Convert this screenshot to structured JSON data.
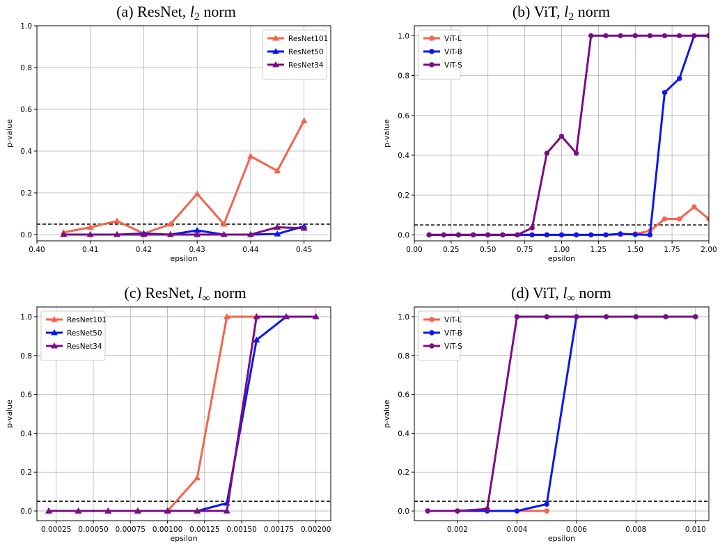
{
  "chart_data": [
    {
      "type": "line",
      "title": {
        "prefix": "(a) ResNet, ",
        "symbol": "l",
        "sub": "2",
        "suffix": " norm"
      },
      "xlabel": "epsilon",
      "ylabel": "p-value",
      "xlim": [
        0.4,
        0.455
      ],
      "ylim": [
        -0.03,
        1.0
      ],
      "xticks": [
        0.4,
        0.41,
        0.42,
        0.43,
        0.44,
        0.45
      ],
      "xtick_labels": [
        "0.40",
        "0.41",
        "0.42",
        "0.43",
        "0.44",
        "0.45"
      ],
      "yticks": [
        0.0,
        0.2,
        0.4,
        0.6,
        0.8,
        1.0
      ],
      "ytick_labels": [
        "0.0",
        "0.2",
        "0.4",
        "0.6",
        "0.8",
        "1.0"
      ],
      "grid": true,
      "legend_position": "top-right",
      "threshold": 0.05,
      "marker": "triangle",
      "x": [
        0.405,
        0.41,
        0.415,
        0.42,
        0.425,
        0.43,
        0.435,
        0.44,
        0.445,
        0.45
      ],
      "series": [
        {
          "name": "ResNet101",
          "color": "#f4634a",
          "values": [
            0.01,
            0.035,
            0.065,
            0.005,
            0.05,
            0.195,
            0.05,
            0.375,
            0.305,
            0.545
          ]
        },
        {
          "name": "ResNet50",
          "color": "#0b16f1",
          "values": [
            0.0,
            0.0,
            0.0,
            0.005,
            0.0,
            0.02,
            0.0,
            0.0,
            0.003,
            0.04
          ]
        },
        {
          "name": "ResNet34",
          "color": "#7a0c86",
          "values": [
            0.0,
            0.0,
            0.0,
            0.0,
            0.0,
            0.0,
            0.0,
            0.0,
            0.035,
            0.03
          ]
        }
      ]
    },
    {
      "type": "line",
      "title": {
        "prefix": "(b) ViT, ",
        "symbol": "l",
        "sub": "2",
        "suffix": " norm"
      },
      "xlabel": "epsilon",
      "ylabel": "p-value",
      "xlim": [
        0.0,
        2.0
      ],
      "ylim": [
        -0.03,
        1.05
      ],
      "xticks": [
        0.0,
        0.25,
        0.5,
        0.75,
        1.0,
        1.25,
        1.5,
        1.75,
        2.0
      ],
      "xtick_labels": [
        "0.00",
        "0.25",
        "0.50",
        "0.75",
        "1.00",
        "1.25",
        "1.50",
        "1.75",
        "2.00"
      ],
      "yticks": [
        0.0,
        0.2,
        0.4,
        0.6,
        0.8,
        1.0
      ],
      "ytick_labels": [
        "0.0",
        "0.2",
        "0.4",
        "0.6",
        "0.8",
        "1.0"
      ],
      "grid": true,
      "legend_position": "top-left",
      "threshold": 0.05,
      "marker": "circle",
      "x": [
        0.1,
        0.2,
        0.3,
        0.4,
        0.5,
        0.6,
        0.7,
        0.8,
        0.9,
        1.0,
        1.1,
        1.2,
        1.3,
        1.4,
        1.5,
        1.6,
        1.7,
        1.8,
        1.9,
        2.0
      ],
      "series": [
        {
          "name": "ViT-L",
          "color": "#f4634a",
          "values": [
            0.0,
            0.0,
            0.0,
            0.0,
            0.0,
            0.0,
            0.0,
            0.0,
            0.0,
            0.0,
            0.0,
            0.0,
            0.0,
            0.002,
            0.005,
            0.02,
            0.08,
            0.08,
            0.14,
            0.08
          ]
        },
        {
          "name": "ViT-B",
          "color": "#0b16f1",
          "values": [
            0.0,
            0.0,
            0.0,
            0.0,
            0.0,
            0.0,
            0.0,
            0.0,
            0.0,
            0.0,
            0.0,
            0.0,
            0.0,
            0.005,
            0.002,
            0.0,
            0.715,
            0.785,
            1.0,
            1.0
          ]
        },
        {
          "name": "ViT-S",
          "color": "#7a0c86",
          "values": [
            0.0,
            0.0,
            0.0,
            0.0,
            0.0,
            0.0,
            0.0,
            0.035,
            0.41,
            0.495,
            0.41,
            1.0,
            1.0,
            1.0,
            1.0,
            1.0,
            1.0,
            1.0,
            1.0,
            1.0
          ]
        }
      ]
    },
    {
      "type": "line",
      "title": {
        "prefix": "(c) ResNet, ",
        "symbol": "l",
        "sub": "∞",
        "suffix": " norm"
      },
      "xlabel": "epsilon",
      "ylabel": "p-value",
      "xlim": [
        0.00012,
        0.0021
      ],
      "ylim": [
        -0.05,
        1.05
      ],
      "xticks": [
        0.00025,
        0.0005,
        0.00075,
        0.001,
        0.00125,
        0.0015,
        0.00175,
        0.002
      ],
      "xtick_labels": [
        "0.00025",
        "0.00050",
        "0.00075",
        "0.00100",
        "0.00125",
        "0.00150",
        "0.00175",
        "0.00200"
      ],
      "yticks": [
        0.0,
        0.2,
        0.4,
        0.6,
        0.8,
        1.0
      ],
      "ytick_labels": [
        "0.0",
        "0.2",
        "0.4",
        "0.6",
        "0.8",
        "1.0"
      ],
      "grid": true,
      "legend_position": "top-left",
      "threshold": 0.05,
      "marker": "triangle",
      "x": [
        0.0002,
        0.0004,
        0.0006,
        0.0008,
        0.001,
        0.0012,
        0.0014,
        0.0016,
        0.0018,
        0.002
      ],
      "series": [
        {
          "name": "ResNet101",
          "color": "#f4634a",
          "values": [
            0.0,
            0.0,
            0.0,
            0.0,
            0.0,
            0.17,
            1.0,
            1.0,
            1.0,
            1.0
          ]
        },
        {
          "name": "ResNet50",
          "color": "#0b16f1",
          "values": [
            0.0,
            0.0,
            0.0,
            0.0,
            0.0,
            0.0,
            0.04,
            0.88,
            1.0,
            1.0
          ]
        },
        {
          "name": "ResNet34",
          "color": "#7a0c86",
          "values": [
            0.0,
            0.0,
            0.0,
            0.0,
            0.0,
            0.0,
            0.0,
            1.0,
            1.0,
            1.0
          ]
        }
      ]
    },
    {
      "type": "line",
      "title": {
        "prefix": "(d) ViT, ",
        "symbol": "l",
        "sub": "∞",
        "suffix": " norm"
      },
      "xlabel": "epsilon",
      "ylabel": "p-value",
      "xlim": [
        0.00055,
        0.01045
      ],
      "ylim": [
        -0.05,
        1.05
      ],
      "xticks": [
        0.002,
        0.004,
        0.006,
        0.008,
        0.01
      ],
      "xtick_labels": [
        "0.002",
        "0.004",
        "0.006",
        "0.008",
        "0.010"
      ],
      "yticks": [
        0.0,
        0.2,
        0.4,
        0.6,
        0.8,
        1.0
      ],
      "ytick_labels": [
        "0.0",
        "0.2",
        "0.4",
        "0.6",
        "0.8",
        "1.0"
      ],
      "grid": true,
      "legend_position": "top-left",
      "threshold": 0.05,
      "marker": "circle",
      "x": [
        0.001,
        0.002,
        0.003,
        0.004,
        0.005,
        0.006,
        0.007,
        0.008,
        0.009,
        0.01
      ],
      "series": [
        {
          "name": "ViT-L",
          "color": "#f4634a",
          "values": [
            0.0,
            0.0,
            0.0,
            0.0,
            0.0,
            null,
            null,
            null,
            null,
            null
          ]
        },
        {
          "name": "ViT-B",
          "color": "#0b16f1",
          "values": [
            0.0,
            0.0,
            0.0,
            0.0,
            0.035,
            1.0,
            1.0,
            1.0,
            1.0,
            1.0
          ]
        },
        {
          "name": "ViT-S",
          "color": "#7a0c86",
          "values": [
            0.0,
            0.0,
            0.01,
            1.0,
            1.0,
            1.0,
            1.0,
            1.0,
            1.0,
            1.0
          ]
        }
      ]
    }
  ]
}
